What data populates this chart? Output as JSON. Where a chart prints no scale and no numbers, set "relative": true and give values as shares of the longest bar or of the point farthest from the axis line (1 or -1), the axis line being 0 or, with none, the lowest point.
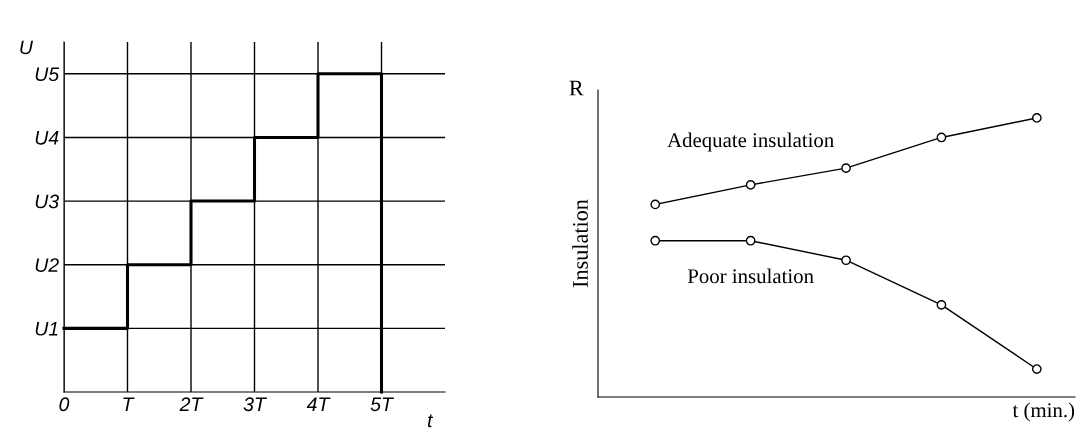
{
  "chart_data": [
    {
      "type": "step",
      "relative": true,
      "xlabel": "t",
      "ylabel": "U",
      "x": [
        0,
        1,
        2,
        3,
        4,
        5
      ],
      "series": [
        {
          "color": "#000000",
          "values": [
            0.2,
            0.4,
            0.6,
            0.8,
            1.0,
            0
          ]
        }
      ],
      "annotations": [
        "U1",
        "U2",
        "U3",
        "U4",
        "U5"
      ],
      "xlim": [
        0,
        6
      ],
      "xticks": [
        {
          "value": 0,
          "label": "0"
        },
        {
          "value": 1,
          "label": "T"
        },
        {
          "value": 2,
          "label": "2T"
        },
        {
          "value": 3,
          "label": "3T"
        },
        {
          "value": 4,
          "label": "4T"
        },
        {
          "value": 5,
          "label": "5T"
        }
      ],
      "grid": true,
      "legend": false,
      "marker": "none",
      "line_style": "solid"
    },
    {
      "type": "line",
      "relative": true,
      "xlabel": "t (min.)",
      "ylabel": "Insulation",
      "annotations": [
        "R"
      ],
      "categories": [
        null,
        null,
        null,
        null,
        null
      ],
      "series": [
        {
          "name": "Adequate insulation",
          "color": "#000000",
          "values": [
            0.69,
            0.76,
            0.82,
            0.93,
            1.0
          ]
        },
        {
          "name": "Poor insulation",
          "color": "#000000",
          "values": [
            0.56,
            0.56,
            0.49,
            0.33,
            0.1
          ]
        }
      ],
      "grid": false,
      "legend": false,
      "marker": "circle",
      "line_style": "solid"
    }
  ]
}
